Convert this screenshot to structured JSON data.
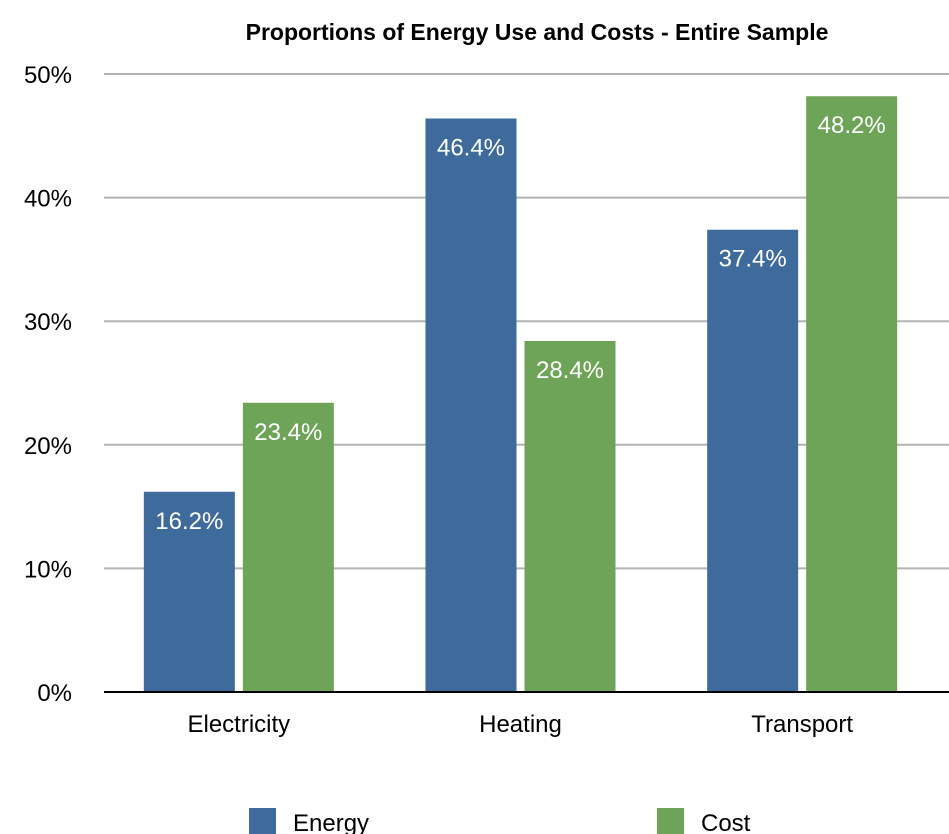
{
  "chart_data": {
    "type": "bar",
    "title": "Proportions of Energy Use and Costs - Entire Sample",
    "xlabel": "",
    "ylabel": "",
    "categories": [
      "Electricity",
      "Heating",
      "Transport"
    ],
    "series": [
      {
        "name": "Energy",
        "values": [
          16.2,
          46.4,
          37.4
        ],
        "labels": [
          "16.2%",
          "46.4%",
          "37.4%"
        ],
        "color": "#3e6a9c"
      },
      {
        "name": "Cost",
        "values": [
          23.4,
          28.4,
          48.2
        ],
        "labels": [
          "23.4%",
          "28.4%",
          "48.2%"
        ],
        "color": "#6ea457"
      }
    ],
    "ylim": [
      0,
      50
    ],
    "yticks": [
      {
        "value": 0,
        "label": "0%"
      },
      {
        "value": 10,
        "label": "10%"
      },
      {
        "value": 20,
        "label": "20%"
      },
      {
        "value": 30,
        "label": "30%"
      },
      {
        "value": 40,
        "label": "40%"
      },
      {
        "value": 50,
        "label": "50%"
      }
    ],
    "grid": true,
    "legend": "bottom"
  }
}
